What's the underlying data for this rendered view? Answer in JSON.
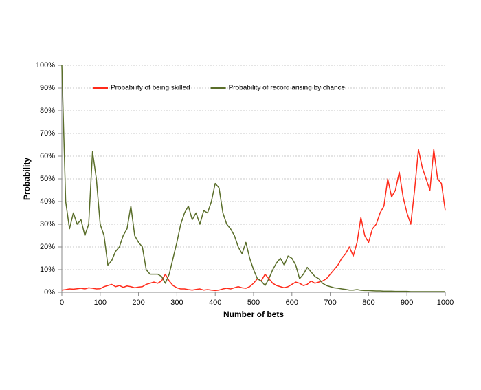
{
  "chart_data": {
    "type": "line",
    "x_label": "Number of bets",
    "y_label": "Probability",
    "x": [
      0,
      10,
      20,
      30,
      40,
      50,
      60,
      70,
      80,
      90,
      100,
      110,
      120,
      130,
      140,
      150,
      160,
      170,
      180,
      190,
      200,
      210,
      220,
      230,
      240,
      250,
      260,
      270,
      280,
      290,
      300,
      310,
      320,
      330,
      340,
      350,
      360,
      370,
      380,
      390,
      400,
      410,
      420,
      430,
      440,
      450,
      460,
      470,
      480,
      490,
      500,
      510,
      520,
      530,
      540,
      550,
      560,
      570,
      580,
      590,
      600,
      610,
      620,
      630,
      640,
      650,
      660,
      670,
      680,
      690,
      700,
      710,
      720,
      730,
      740,
      750,
      760,
      770,
      780,
      790,
      800,
      810,
      820,
      830,
      840,
      850,
      860,
      870,
      880,
      890,
      900,
      910,
      920,
      930,
      940,
      950,
      960,
      970,
      980,
      990,
      1000
    ],
    "series": [
      {
        "name": "Probability of being skilled",
        "color": "#ff2a1a",
        "values": [
          1,
          1.2,
          1.5,
          1.4,
          1.6,
          1.8,
          1.5,
          2,
          1.8,
          1.5,
          1.6,
          2.5,
          3,
          3.5,
          2.5,
          3,
          2.2,
          2.8,
          2.5,
          2,
          2.3,
          2.5,
          3.5,
          4,
          4.5,
          4,
          5,
          8,
          5,
          3,
          2,
          1.5,
          1.5,
          1.2,
          1,
          1.3,
          1.5,
          1,
          1.2,
          1,
          0.8,
          1,
          1.5,
          1.8,
          1.5,
          2,
          2.5,
          2,
          1.8,
          2.5,
          4,
          6,
          5,
          8,
          6,
          4,
          3,
          2.5,
          2,
          2.5,
          3.5,
          4.5,
          4,
          3,
          3.5,
          5,
          4,
          4.5,
          5,
          6,
          8,
          10,
          12,
          15,
          17,
          20,
          16,
          22,
          33,
          25,
          22,
          28,
          30,
          35,
          38,
          50,
          42,
          45,
          53,
          42,
          35,
          30,
          45,
          63,
          55,
          50,
          45,
          63,
          50,
          48,
          36
        ]
      },
      {
        "name": "Probability of record arising by chance",
        "color": "#5a6e2a",
        "values": [
          100,
          40,
          28,
          35,
          30,
          32,
          25,
          30,
          62,
          50,
          30,
          25,
          12,
          14,
          18,
          20,
          25,
          28,
          38,
          25,
          22,
          20,
          10,
          8,
          8,
          8,
          7,
          4,
          8,
          15,
          22,
          30,
          35,
          38,
          32,
          35,
          30,
          36,
          35,
          40,
          48,
          46,
          35,
          30,
          28,
          25,
          20,
          17,
          22,
          15,
          10,
          6,
          5,
          3,
          6,
          10,
          13,
          15,
          12,
          16,
          15,
          12,
          6,
          8,
          11,
          9,
          7,
          6,
          4,
          3,
          2.5,
          2,
          1.8,
          1.5,
          1.3,
          1,
          1,
          1.2,
          0.9,
          0.8,
          0.8,
          0.7,
          0.6,
          0.6,
          0.5,
          0.5,
          0.5,
          0.4,
          0.4,
          0.4,
          0.4,
          0.3,
          0.3,
          0.3,
          0.3,
          0.3,
          0.3,
          0.3,
          0.3,
          0.3,
          0.3
        ]
      }
    ],
    "xlim": [
      0,
      1000
    ],
    "xticks": [
      0,
      100,
      200,
      300,
      400,
      500,
      600,
      700,
      800,
      900,
      1000
    ],
    "ylim": [
      0,
      100
    ],
    "yticks": [
      {
        "value": 0,
        "label": "0%"
      },
      {
        "value": 10,
        "label": "10%"
      },
      {
        "value": 20,
        "label": "20%"
      },
      {
        "value": 30,
        "label": "30%"
      },
      {
        "value": 40,
        "label": "40%"
      },
      {
        "value": 50,
        "label": "50%"
      },
      {
        "value": 60,
        "label": "60%"
      },
      {
        "value": 70,
        "label": "70%"
      },
      {
        "value": 80,
        "label": "80%"
      },
      {
        "value": 90,
        "label": "90%"
      },
      {
        "value": 100,
        "label": "100%"
      }
    ],
    "grid": true,
    "legend": "top"
  }
}
